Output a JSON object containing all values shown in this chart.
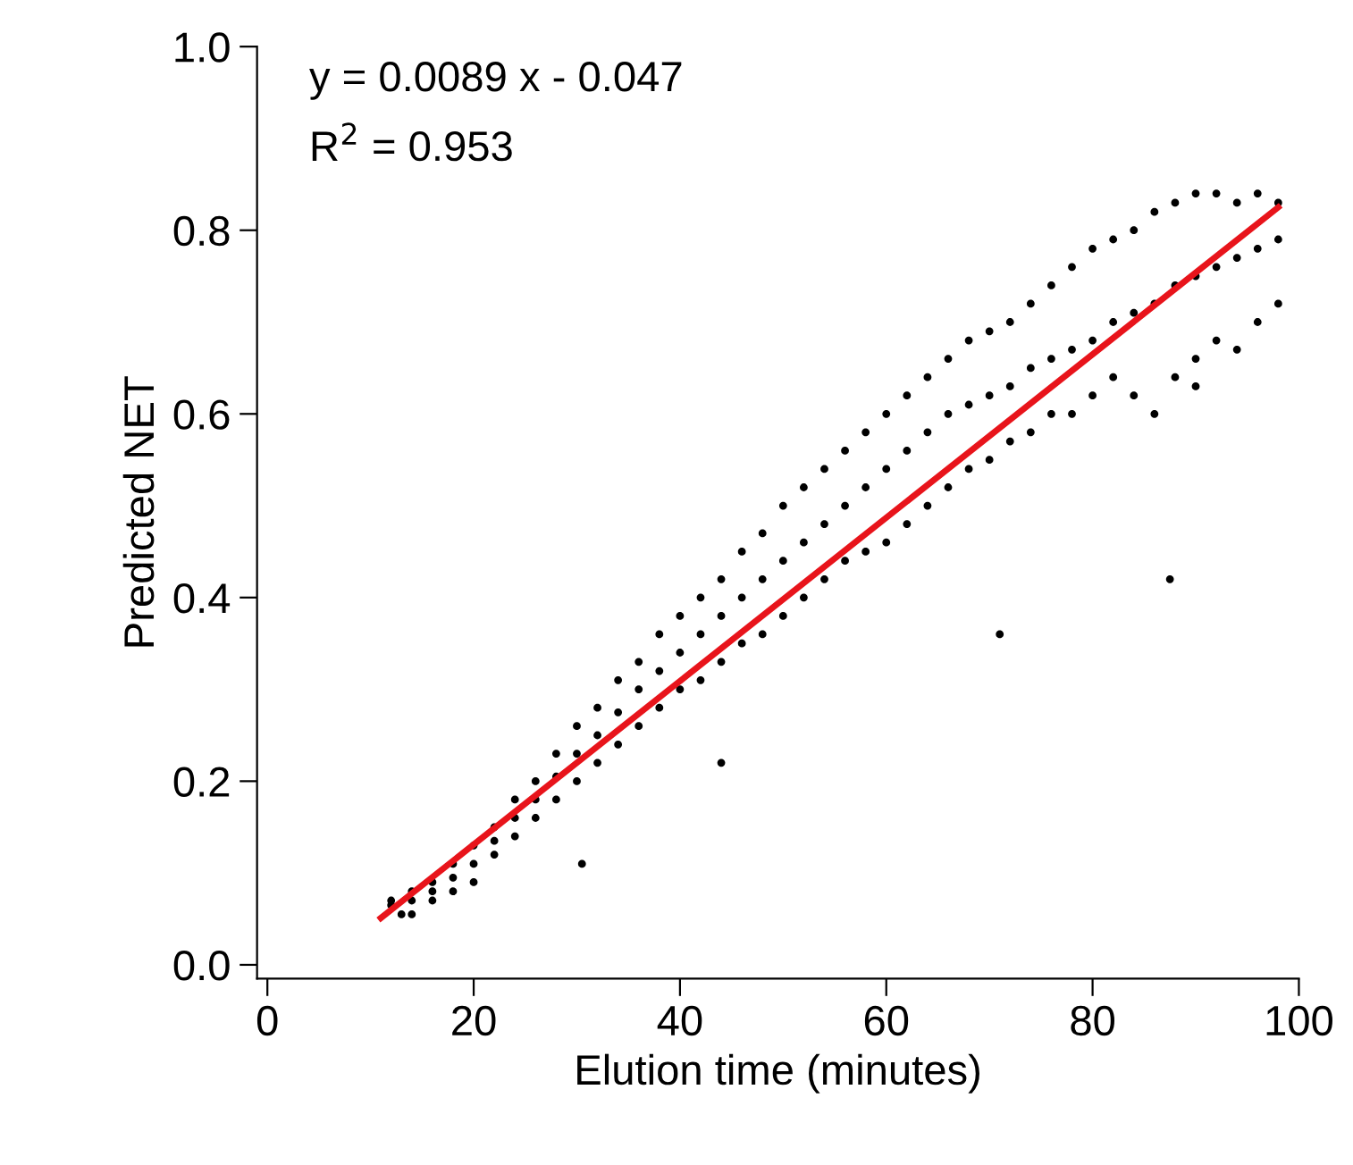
{
  "chart_data": {
    "type": "scatter",
    "xlabel": "Elution time (minutes)",
    "ylabel": "Predicted NET",
    "annotations": [
      "y = 0.0089 x - 0.047",
      "R$^{2}$ = 0.953"
    ],
    "xlim": [
      -1,
      100
    ],
    "ylim": [
      -0.015,
      1.0
    ],
    "xticks": [
      0,
      20,
      40,
      60,
      80,
      100
    ],
    "yticks": [
      {
        "value": 0,
        "label": "0.0"
      },
      {
        "value": 0.2,
        "label": "0.2"
      },
      {
        "value": 0.4,
        "label": "0.4"
      },
      {
        "value": 0.6,
        "label": "0.6"
      },
      {
        "value": 0.8,
        "label": "0.8"
      },
      {
        "value": 1.0,
        "label": "1.0"
      }
    ],
    "grid": false,
    "marker": "circle",
    "series": [
      {
        "color": "#000000",
        "x": [
          12,
          12,
          13,
          14,
          14,
          14,
          16,
          16,
          16,
          18,
          18,
          18,
          20,
          20,
          20,
          22,
          22,
          22,
          24,
          24,
          24,
          26,
          26,
          26,
          28,
          28,
          28,
          30,
          30,
          30,
          32,
          32,
          32,
          34,
          34,
          34,
          36,
          36,
          36,
          38,
          38,
          38,
          40,
          40,
          40,
          42,
          42,
          42,
          44,
          44,
          44,
          46,
          46,
          46,
          48,
          48,
          48,
          50,
          50,
          50,
          52,
          52,
          52,
          54,
          54,
          54,
          56,
          56,
          56,
          58,
          58,
          58,
          60,
          60,
          60,
          62,
          62,
          62,
          64,
          64,
          64,
          66,
          66,
          66,
          68,
          68,
          68,
          70,
          70,
          70,
          72,
          72,
          72,
          74,
          74,
          74,
          76,
          76,
          76,
          78,
          78,
          78,
          80,
          80,
          80,
          82,
          82,
          82,
          84,
          84,
          84,
          86,
          86,
          86,
          88,
          88,
          88,
          90,
          90,
          90,
          92,
          92,
          92,
          94,
          94,
          94,
          96,
          96,
          96,
          98,
          98,
          98,
          87.5,
          71,
          30.5,
          44,
          90
        ],
        "values": [
          0.07,
          0.065,
          0.055,
          0.08,
          0.07,
          0.055,
          0.09,
          0.08,
          0.07,
          0.11,
          0.095,
          0.08,
          0.13,
          0.11,
          0.09,
          0.15,
          0.135,
          0.12,
          0.18,
          0.16,
          0.14,
          0.2,
          0.18,
          0.16,
          0.23,
          0.205,
          0.18,
          0.26,
          0.23,
          0.2,
          0.28,
          0.25,
          0.22,
          0.31,
          0.275,
          0.24,
          0.33,
          0.3,
          0.26,
          0.36,
          0.32,
          0.28,
          0.38,
          0.34,
          0.3,
          0.4,
          0.36,
          0.31,
          0.42,
          0.38,
          0.33,
          0.45,
          0.4,
          0.35,
          0.47,
          0.42,
          0.36,
          0.5,
          0.44,
          0.38,
          0.52,
          0.46,
          0.4,
          0.54,
          0.48,
          0.42,
          0.56,
          0.5,
          0.44,
          0.58,
          0.52,
          0.45,
          0.6,
          0.54,
          0.46,
          0.62,
          0.56,
          0.48,
          0.64,
          0.58,
          0.5,
          0.66,
          0.6,
          0.52,
          0.68,
          0.61,
          0.54,
          0.69,
          0.62,
          0.55,
          0.7,
          0.63,
          0.57,
          0.72,
          0.65,
          0.58,
          0.74,
          0.66,
          0.6,
          0.76,
          0.67,
          0.6,
          0.78,
          0.68,
          0.62,
          0.79,
          0.7,
          0.64,
          0.8,
          0.71,
          0.62,
          0.82,
          0.72,
          0.6,
          0.83,
          0.74,
          0.64,
          0.84,
          0.75,
          0.66,
          0.84,
          0.76,
          0.68,
          0.83,
          0.77,
          0.67,
          0.84,
          0.78,
          0.7,
          0.83,
          0.79,
          0.72,
          0.42,
          0.36,
          0.11,
          0.22,
          0.63
        ]
      },
      {
        "type": "line",
        "color": "#e8141b",
        "marker": "none",
        "x": [
          11,
          98
        ],
        "values": [
          0.051,
          0.825
        ]
      }
    ]
  }
}
